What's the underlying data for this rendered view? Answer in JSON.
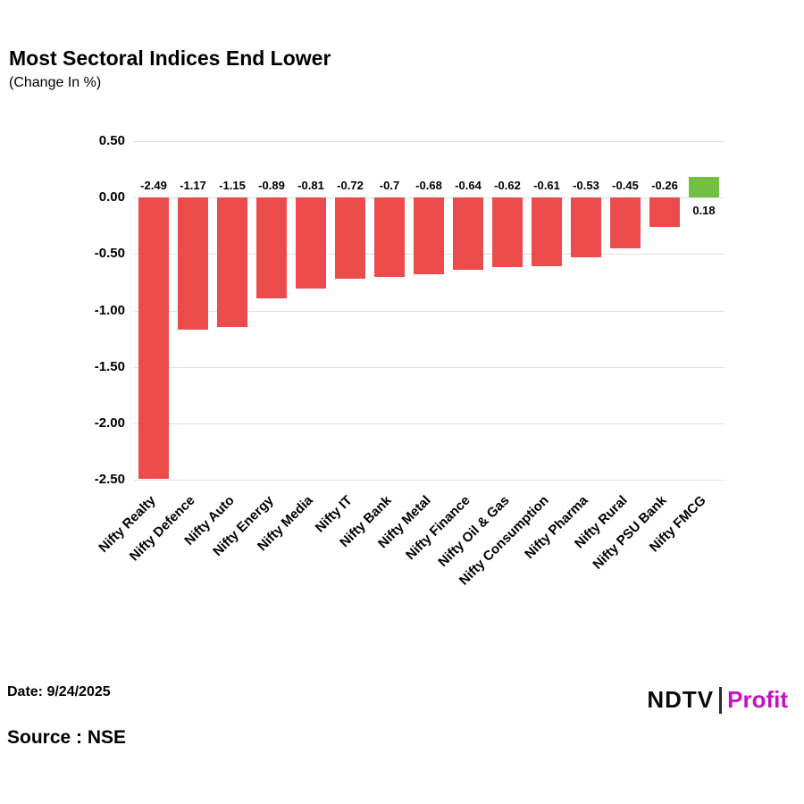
{
  "title": "Most Sectoral Indices End Lower",
  "subtitle": "(Change In %)",
  "footer": {
    "date_label": "Date: 9/24/2025",
    "source_label": "Source : NSE"
  },
  "logo": {
    "ndtv": "NDTV",
    "profit": "Profit"
  },
  "colors": {
    "negative_bar": "#ec4b4b",
    "positive_bar": "#72bf44",
    "grid": "#dedede",
    "text": "#000000"
  },
  "chart_data": {
    "type": "bar",
    "title": "Most Sectoral Indices End Lower",
    "xlabel": "",
    "ylabel": "Change In %",
    "categories": [
      "Nifty Realty",
      "Nifty Defence",
      "Nifty Auto",
      "Nifty Energy",
      "Nifty Media",
      "Nifty IT",
      "Nifty Bank",
      "Nifty Metal",
      "Nifty Finance",
      "Nifty Oil & Gas",
      "Nifty Consumption",
      "Nifty Pharma",
      "Nifty Rural",
      "Nifty PSU Bank",
      "Nifty FMCG"
    ],
    "values": [
      -2.49,
      -1.17,
      -1.15,
      -0.89,
      -0.81,
      -0.72,
      -0.7,
      -0.68,
      -0.64,
      -0.62,
      -0.61,
      -0.53,
      -0.45,
      -0.26,
      0.18
    ],
    "bar_labels": [
      "-2.49",
      "-1.17",
      "-1.15",
      "-0.89",
      "-0.81",
      "-0.72",
      "-0.7",
      "-0.68",
      "-0.64",
      "-0.62",
      "-0.61",
      "-0.53",
      "-0.45",
      "-0.26",
      "0.18"
    ],
    "ylim": [
      -2.5,
      0.5
    ],
    "ytick_labels": [
      "0.50",
      "0.00",
      "-0.50",
      "-1.00",
      "-1.50",
      "-2.00",
      "-2.50"
    ],
    "grid": true,
    "legend": "none"
  }
}
